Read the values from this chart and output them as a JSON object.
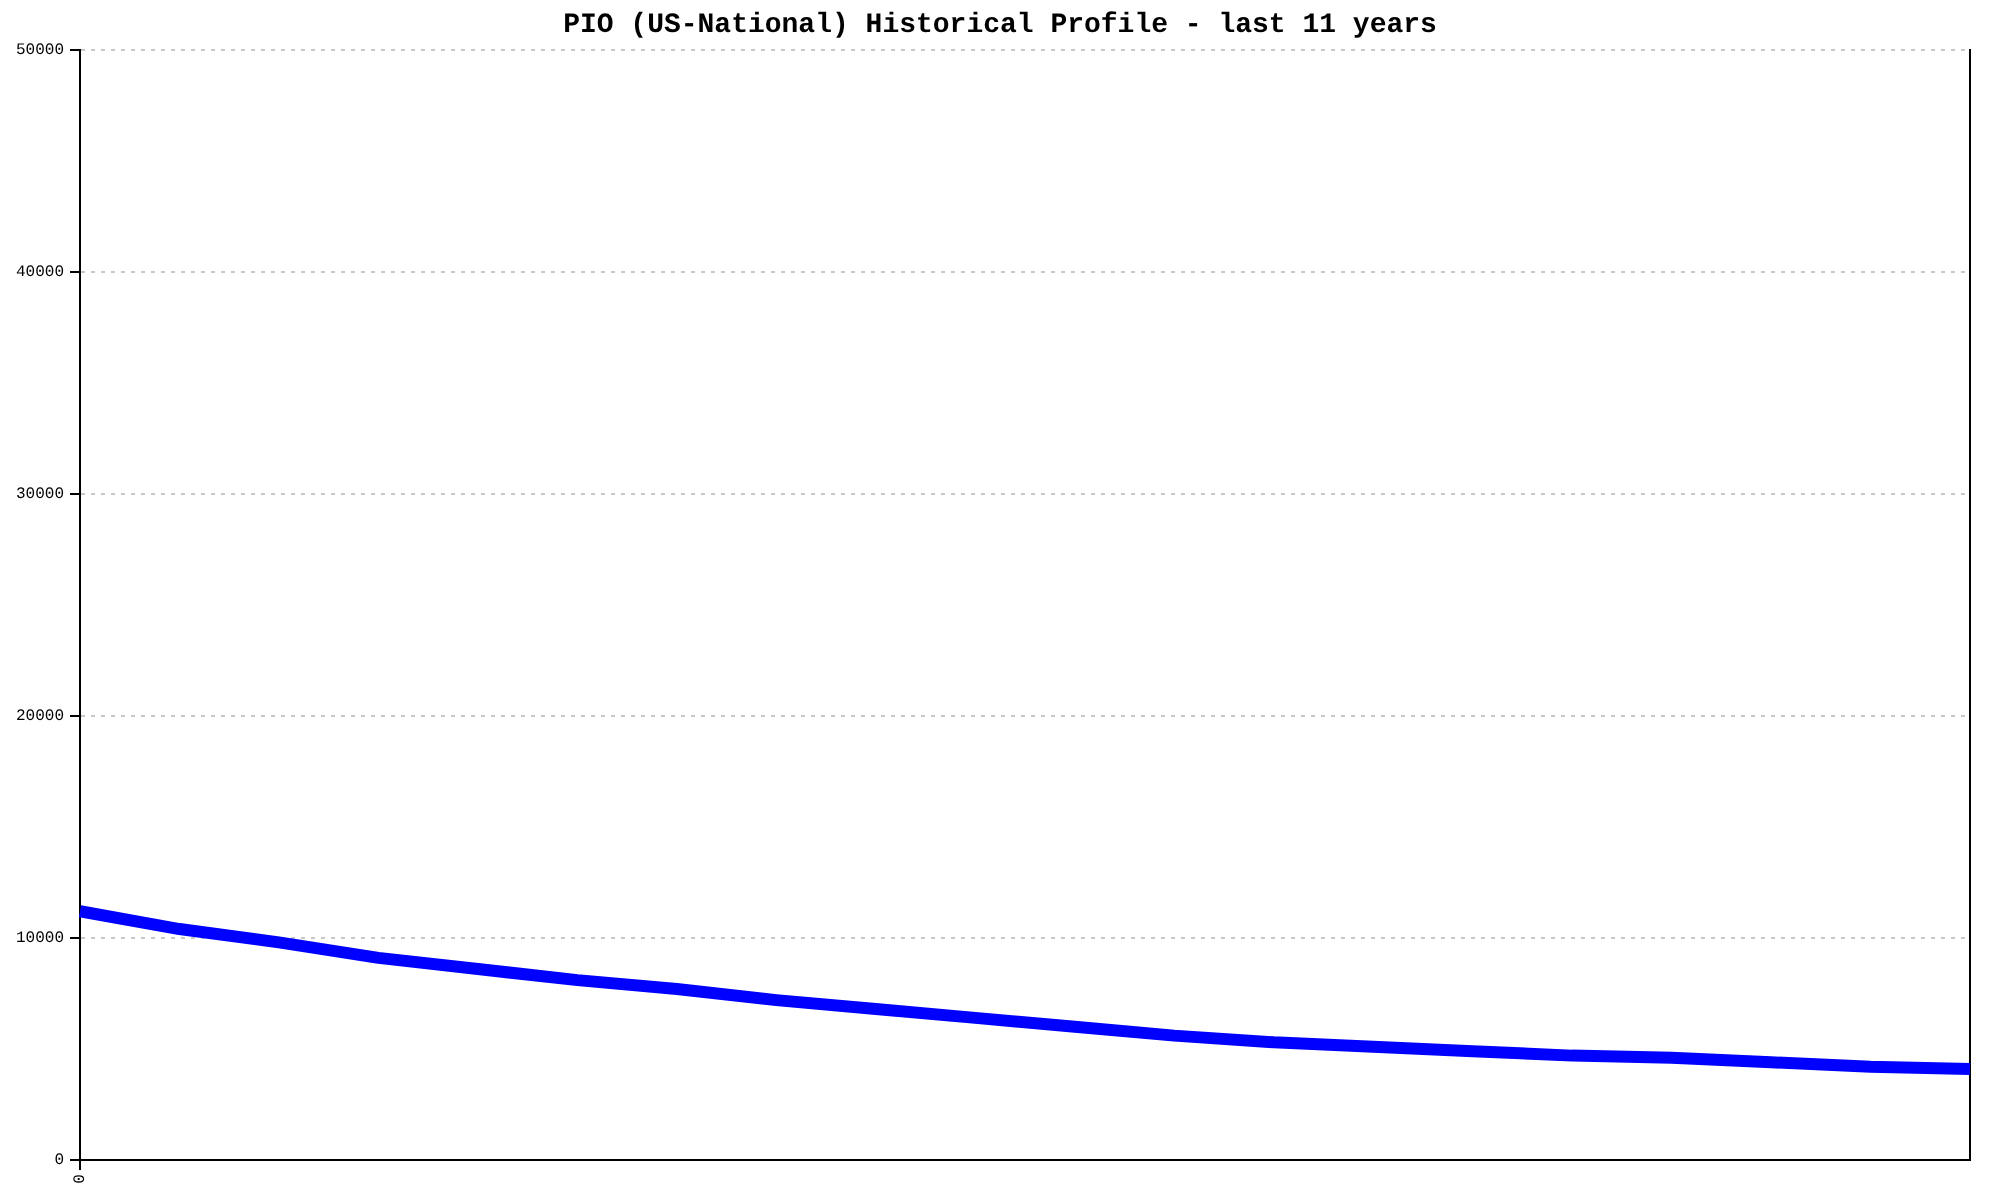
{
  "chart_data": {
    "type": "line",
    "title": "PIO (US-National) Historical Profile - last 11 years",
    "categories": [
      "0",
      null,
      null,
      null,
      null,
      null,
      null,
      null,
      null,
      null,
      null,
      null,
      null,
      null,
      null,
      null,
      null,
      null,
      null,
      null
    ],
    "series": [
      {
        "color": "#0000ff",
        "values": [
          11200,
          10400,
          9800,
          9100,
          8600,
          8100,
          7700,
          7200,
          6800,
          6400,
          6000,
          5600,
          5300,
          5100,
          4900,
          4700,
          4600,
          4400,
          4200,
          4100
        ]
      }
    ],
    "ylim": [
      0,
      50000
    ],
    "yticks": [
      0,
      10000,
      20000,
      30000,
      40000,
      50000
    ],
    "grid": "y",
    "marker": "none",
    "line_style": "solid"
  }
}
